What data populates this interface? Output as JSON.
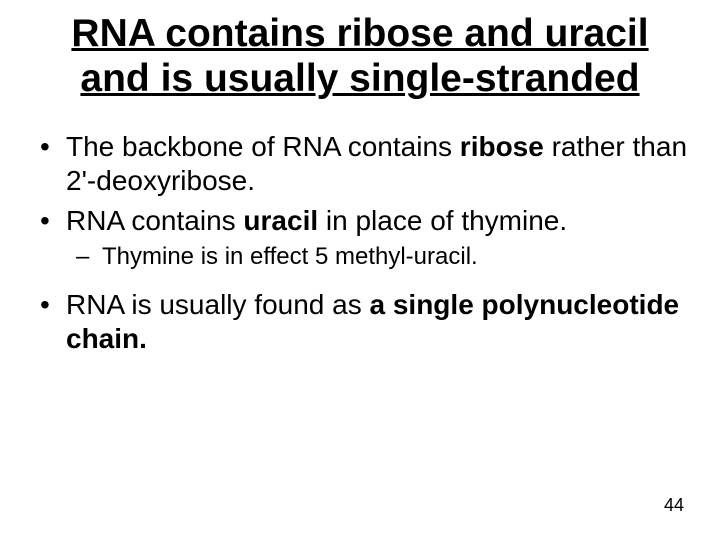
{
  "title": {
    "line1": "RNA contains ribose and uracil",
    "line2": "and is usually single-stranded",
    "fontsize": 39,
    "fontweight": "bold",
    "color": "#000000",
    "underline": true,
    "align": "center"
  },
  "body": {
    "fontsize_bullet": 28,
    "fontsize_sub": 24,
    "color": "#000000",
    "bullets": [
      {
        "pre": "The backbone of RNA contains ",
        "bold1": "ribose",
        "mid1": " rather than 2'-deoxyribose.",
        "bold2": "",
        "post": ""
      },
      {
        "pre": "RNA contains ",
        "bold1": "uracil",
        "mid1": " in place of thymine.",
        "bold2": "",
        "post": ""
      }
    ],
    "subbullet": "Thymine is in effect 5 methyl-uracil.",
    "bullet3": {
      "pre": "RNA is usually found as ",
      "bold1": "a single polynucleotide chain.",
      "mid1": "",
      "bold2": "",
      "post": ""
    }
  },
  "page_number": "44",
  "background_color": "#ffffff"
}
